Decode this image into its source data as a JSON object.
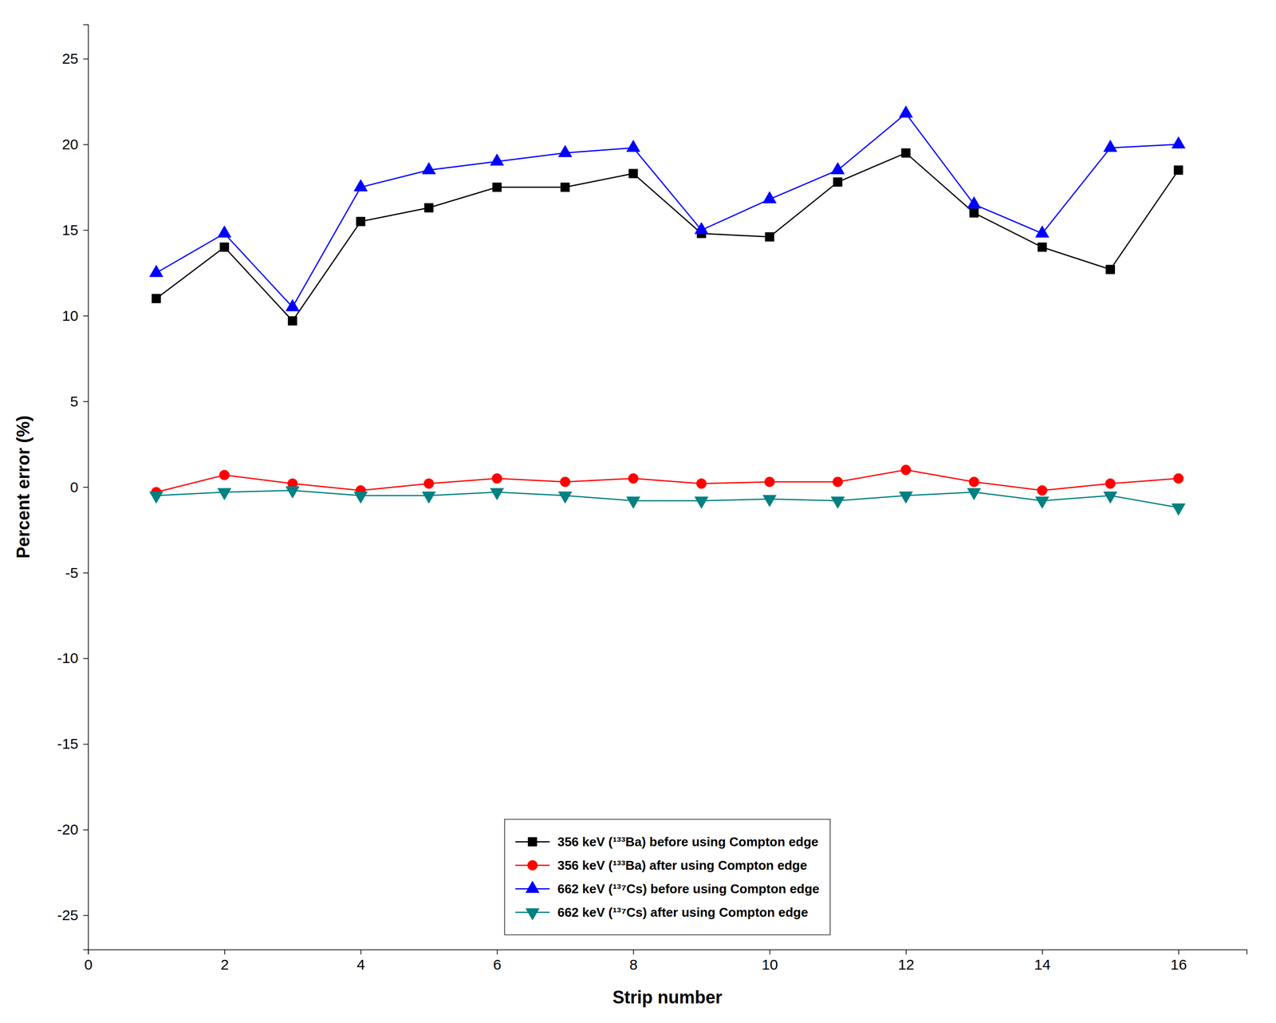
{
  "chart_data": {
    "type": "line",
    "x": [
      1,
      2,
      3,
      4,
      5,
      6,
      7,
      8,
      9,
      10,
      11,
      12,
      13,
      14,
      15,
      16
    ],
    "series": [
      {
        "name": "356 keV (¹³³Ba) before using Compton edge",
        "color": "#000000",
        "marker": "square",
        "values": [
          11.0,
          14.0,
          9.7,
          15.5,
          16.3,
          17.5,
          17.5,
          18.3,
          14.8,
          14.6,
          17.8,
          19.5,
          16.0,
          14.0,
          12.7,
          18.5
        ]
      },
      {
        "name": "356 keV (¹³³Ba) after using Compton edge",
        "color": "#ff0000",
        "marker": "circle",
        "values": [
          -0.3,
          0.7,
          0.2,
          -0.2,
          0.2,
          0.5,
          0.3,
          0.5,
          0.2,
          0.3,
          0.3,
          1.0,
          0.3,
          -0.2,
          0.2,
          0.5
        ]
      },
      {
        "name": "662 keV (¹³⁷Cs) before using Compton edge",
        "color": "#0000ff",
        "marker": "triangle-up",
        "values": [
          12.5,
          14.8,
          10.5,
          17.5,
          18.5,
          19.0,
          19.5,
          19.8,
          15.0,
          16.8,
          18.5,
          21.8,
          16.5,
          14.8,
          19.8,
          20.0
        ]
      },
      {
        "name": "662 keV (¹³⁷Cs) after using Compton edge",
        "color": "#008080",
        "marker": "triangle-down",
        "values": [
          -0.5,
          -0.3,
          -0.2,
          -0.5,
          -0.5,
          -0.3,
          -0.5,
          -0.8,
          -0.8,
          -0.7,
          -0.8,
          -0.5,
          -0.3,
          -0.8,
          -0.5,
          -1.2
        ]
      }
    ],
    "xlabel": "Strip number",
    "ylabel": "Percent error (%)",
    "xlim": [
      0,
      17
    ],
    "ylim": [
      -27,
      27
    ],
    "xticks": [
      0,
      2,
      4,
      6,
      8,
      10,
      12,
      14,
      16
    ],
    "yticks": [
      -25,
      -20,
      -15,
      -10,
      -5,
      0,
      5,
      10,
      15,
      20,
      25
    ],
    "grid": false,
    "legend": "bottom"
  }
}
